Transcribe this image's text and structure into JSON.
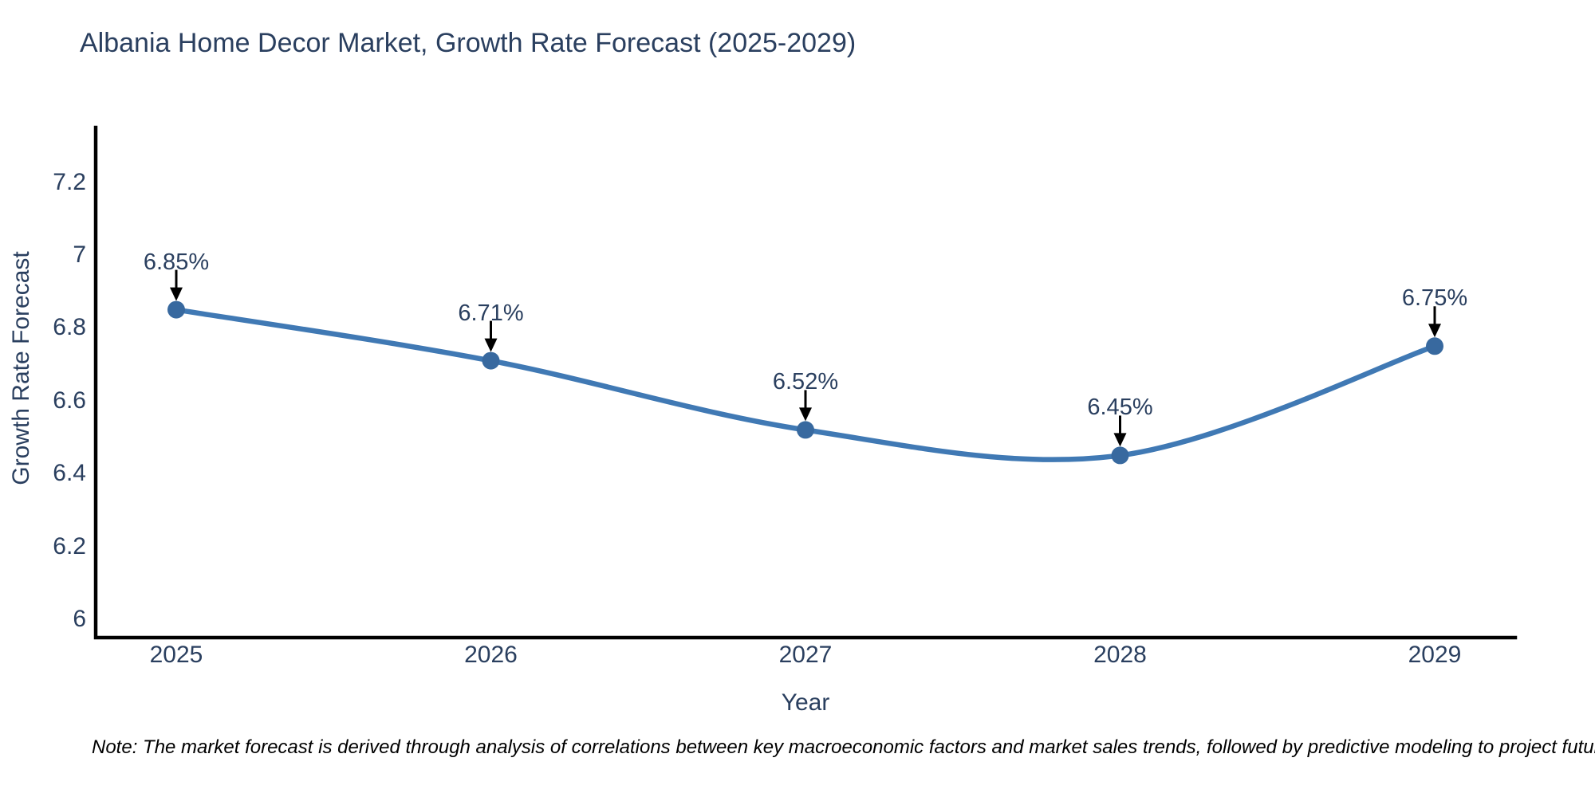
{
  "title": "Albania Home Decor Market, Growth Rate Forecast (2025-2029)",
  "note": "Note: The market forecast is derived through analysis of correlations between key macroeconomic factors and market sales trends, followed by predictive modeling to project future sales",
  "chart_data": {
    "type": "line",
    "title": "Albania Home Decor Market, Growth Rate Forecast (2025-2029)",
    "xlabel": "Year",
    "ylabel": "Growth Rate Forecast",
    "categories": [
      "2025",
      "2026",
      "2027",
      "2028",
      "2029"
    ],
    "series": [
      {
        "name": "Growth Rate Forecast",
        "values": [
          6.85,
          6.71,
          6.52,
          6.45,
          6.75
        ]
      }
    ],
    "point_labels": [
      "6.85%",
      "6.71%",
      "6.52%",
      "6.45%",
      "6.75%"
    ],
    "ytick_labels": [
      "6",
      "6.2",
      "6.4",
      "6.6",
      "6.8",
      "7",
      "7.2"
    ],
    "yticks": [
      6,
      6.2,
      6.4,
      6.6,
      6.8,
      7,
      7.2
    ],
    "ylim": [
      5.95,
      7.35
    ],
    "line_shape": "spline",
    "grid": false,
    "legend_position": "none",
    "colors": {
      "line": "#4079b4",
      "marker": "#38699f",
      "axis": "#000000",
      "text": "#2a3f5f",
      "arrow": "#000000",
      "note_text": "#000000",
      "background": "#ffffff"
    }
  }
}
